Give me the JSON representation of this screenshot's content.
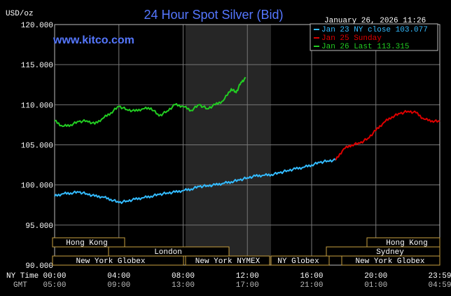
{
  "chart_data": {
    "type": "line",
    "title": "24 Hour Spot Silver (Bid)",
    "ylabel": "USD/oz",
    "watermark": "www.kitco.com",
    "timestamp": "January 26, 2026 11:26",
    "ylim": [
      90,
      120
    ],
    "y_ticks": [
      "120.000",
      "115.000",
      "110.000",
      "105.000",
      "100.000",
      "95.000",
      "90.000"
    ],
    "x_row_ny_label": "NY Time",
    "x_row_gmt_label": "GMT",
    "x_ticks_ny": [
      "00:00",
      "04:00",
      "08:00",
      "12:00",
      "16:00",
      "20:00",
      "23:59"
    ],
    "x_ticks_gmt": [
      "05:00",
      "09:00",
      "13:00",
      "17:00",
      "21:00",
      "01:00",
      "04:59"
    ],
    "grid": true,
    "legend_position": "top-right",
    "legend": [
      {
        "label": "Jan 23 NY close 103.077",
        "color": "#33bbff"
      },
      {
        "label": "Jan 25 Sunday",
        "color": "#dd0000"
      },
      {
        "label": "Jan 26 Last 113.315",
        "color": "#22cc22"
      }
    ],
    "market_bars_left": [
      {
        "label": "Hong Kong"
      },
      {
        "label": "London"
      },
      {
        "label": "New York Globex"
      },
      {
        "label": "New York NYMEX"
      },
      {
        "label": "NY Globex"
      }
    ],
    "market_bars_right": [
      {
        "label": "Hong Kong"
      },
      {
        "label": "Sydney"
      },
      {
        "label": "New York Globex"
      }
    ],
    "series": [
      {
        "name": "Jan 23 NY close 103.077",
        "color": "#33bbff",
        "x": [
          0,
          0.5,
          1,
          1.5,
          2,
          2.5,
          3,
          3.5,
          4,
          4.5,
          5,
          5.5,
          6,
          6.5,
          7,
          7.5,
          8,
          8.5,
          9,
          9.5,
          10,
          10.5,
          11,
          11.5,
          12,
          12.5,
          13,
          13.5,
          14,
          14.5,
          15,
          15.5,
          16,
          16.5,
          17,
          17.5
        ],
        "values": [
          98.6,
          98.9,
          99.0,
          99.1,
          98.9,
          98.6,
          98.5,
          98.2,
          97.8,
          98.0,
          98.2,
          98.4,
          98.6,
          98.8,
          99.0,
          99.1,
          99.3,
          99.5,
          99.8,
          99.9,
          100.0,
          100.2,
          100.4,
          100.6,
          100.9,
          101.1,
          101.2,
          101.3,
          101.5,
          101.8,
          102.0,
          102.2,
          102.5,
          102.8,
          103.0,
          103.1
        ]
      },
      {
        "name": "Jan 25 Sunday",
        "color": "#dd0000",
        "x": [
          17.5,
          18,
          18.5,
          19,
          19.5,
          20,
          20.5,
          21,
          21.5,
          22,
          22.5,
          23,
          23.5,
          23.98
        ],
        "values": [
          103.1,
          104.5,
          105.0,
          105.2,
          105.8,
          106.8,
          107.8,
          108.5,
          108.9,
          109.2,
          109.0,
          108.2,
          108.0,
          107.9
        ]
      },
      {
        "name": "Jan 26 Last 113.315",
        "color": "#22cc22",
        "x": [
          0,
          0.5,
          1,
          1.5,
          2,
          2.5,
          3,
          3.5,
          4,
          4.5,
          5,
          5.5,
          6,
          6.5,
          7,
          7.5,
          8,
          8.5,
          9,
          9.5,
          10,
          10.5,
          11,
          11.3,
          11.6,
          11.9
        ],
        "values": [
          108.0,
          107.3,
          107.5,
          107.9,
          108.0,
          107.6,
          108.3,
          109.0,
          109.8,
          109.4,
          109.2,
          109.5,
          109.6,
          108.6,
          109.2,
          110.0,
          109.8,
          109.3,
          110.0,
          109.5,
          110.0,
          110.5,
          112.0,
          111.5,
          112.8,
          113.3
        ]
      }
    ]
  }
}
